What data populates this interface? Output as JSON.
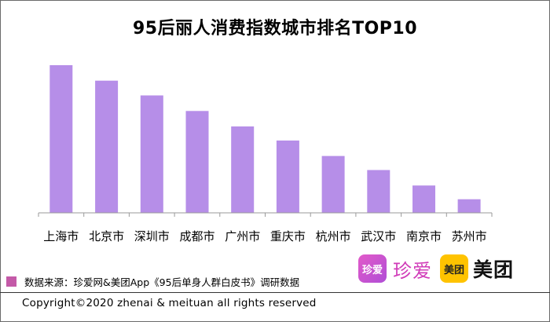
{
  "chart_data": {
    "type": "bar",
    "title": "95后丽人消费指数城市排名TOP10",
    "categories": [
      "上海市",
      "北京市",
      "深圳市",
      "成都市",
      "广州市",
      "重庆市",
      "杭州市",
      "武汉市",
      "南京市",
      "苏州市"
    ],
    "values": [
      100,
      89.5,
      79.5,
      69,
      58.5,
      49,
      38.5,
      29,
      18.5,
      9.2
    ],
    "ylim": [
      0,
      100
    ],
    "xlabel": "",
    "ylabel": "",
    "grid": false,
    "bar_color": "#b68ee8"
  },
  "footer": {
    "source": "数据来源：珍爱网&美团App《95后单身人群白皮书》调研数据",
    "source_swatch_color": "#c45aa8",
    "copyright": "Copyright©2020 zhenai & meituan all rights reserved"
  },
  "logos": {
    "zhenai_badge": "珍爱",
    "zhenai_word": "珍爱",
    "meituan_badge": "美团",
    "meituan_word": "美团"
  }
}
